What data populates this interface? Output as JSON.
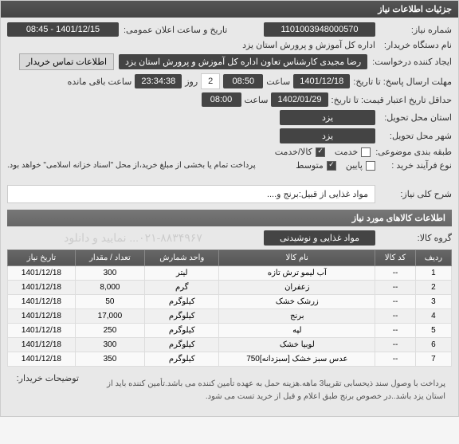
{
  "panel_title": "جزئیات اطلاعات نیاز",
  "fields": {
    "req_no_label": "شماره نیاز:",
    "req_no": "1101003948000570",
    "announce_label": "تاریخ و ساعت اعلان عمومی:",
    "announce": "1401/12/15 - 08:45",
    "buyer_label": "نام دستگاه خریدار:",
    "buyer": "اداره کل آموزش و پرورش استان یزد",
    "creator_label": "ایجاد کننده درخواست:",
    "creator": "رضا مجیدی کارشناس تعاون اداره کل آموزش و پرورش استان یزد",
    "contact_info": "اطلاعات تماس خریدار",
    "deadline_label": "مهلت ارسال پاسخ: تا تاریخ:",
    "deadline_date": "1401/12/18",
    "time_label": "ساعت",
    "deadline_time": "08:50",
    "days_label": "روز",
    "days": "2",
    "remain": "23:34:38",
    "remain_label": "ساعت باقی مانده",
    "valid_label": "حداقل تاریخ اعتبار قیمت: تا تاریخ:",
    "valid_date": "1402/01/29",
    "valid_time": "08:00",
    "loc_label": "استان محل تحویل:",
    "loc": "یزد",
    "city_label": "شهر محل تحویل:",
    "city": "یزد",
    "cat_label": "طبقه بندی موضوعی:",
    "cat_service": "خدمت",
    "cat_goods": "کالا/خدمت",
    "process_label": "نوع فرآیند خرید :",
    "process_low": "پایین",
    "process_mid": "متوسط",
    "process_note": "پرداخت تمام یا بخشی از مبلغ خرید،از محل \"اسناد خزانه اسلامی\" خواهد بود.",
    "desc_label": "شرح کلی نیاز:",
    "desc": "مواد غذایی از قبیل:برنج و....",
    "goods_header": "اطلاعات کالاهای مورد نیاز",
    "group_label": "گروه کالا:",
    "group": "مواد غذایی و نوشیدنی",
    "watermark": "۰۲۱-۸۸۳۴۹۶۷... نمایید و دانلود",
    "buyer_note_label": "توضیحات خریدار:",
    "buyer_note": "پرداخت با وصول سند ذیحسابی تقریبا3 ماهه.هزینه حمل به عهده تأمین کننده می باشد.تأمین کننده باید از استان یزد باشد..در خصوص برنج طبق اعلام و قبل از خرید تست می شود."
  },
  "table": {
    "headers": [
      "ردیف",
      "کد کالا",
      "نام کالا",
      "واحد شمارش",
      "تعداد / مقدار",
      "تاریخ نیاز"
    ],
    "rows": [
      [
        "1",
        "--",
        "آب لیمو ترش تازه",
        "لیتر",
        "300",
        "1401/12/18"
      ],
      [
        "2",
        "--",
        "زعفران",
        "گرم",
        "8,000",
        "1401/12/18"
      ],
      [
        "3",
        "--",
        "زرشک خشک",
        "کیلوگرم",
        "50",
        "1401/12/18"
      ],
      [
        "4",
        "--",
        "برنج",
        "کیلوگرم",
        "17,000",
        "1401/12/18"
      ],
      [
        "5",
        "--",
        "لپه",
        "کیلوگرم",
        "250",
        "1401/12/18"
      ],
      [
        "6",
        "--",
        "لوبیا خشک",
        "کیلوگرم",
        "300",
        "1401/12/18"
      ],
      [
        "7",
        "--",
        "عدس سبز خشک [سبزدانه]750",
        "کیلوگرم",
        "350",
        "1401/12/18"
      ]
    ]
  }
}
